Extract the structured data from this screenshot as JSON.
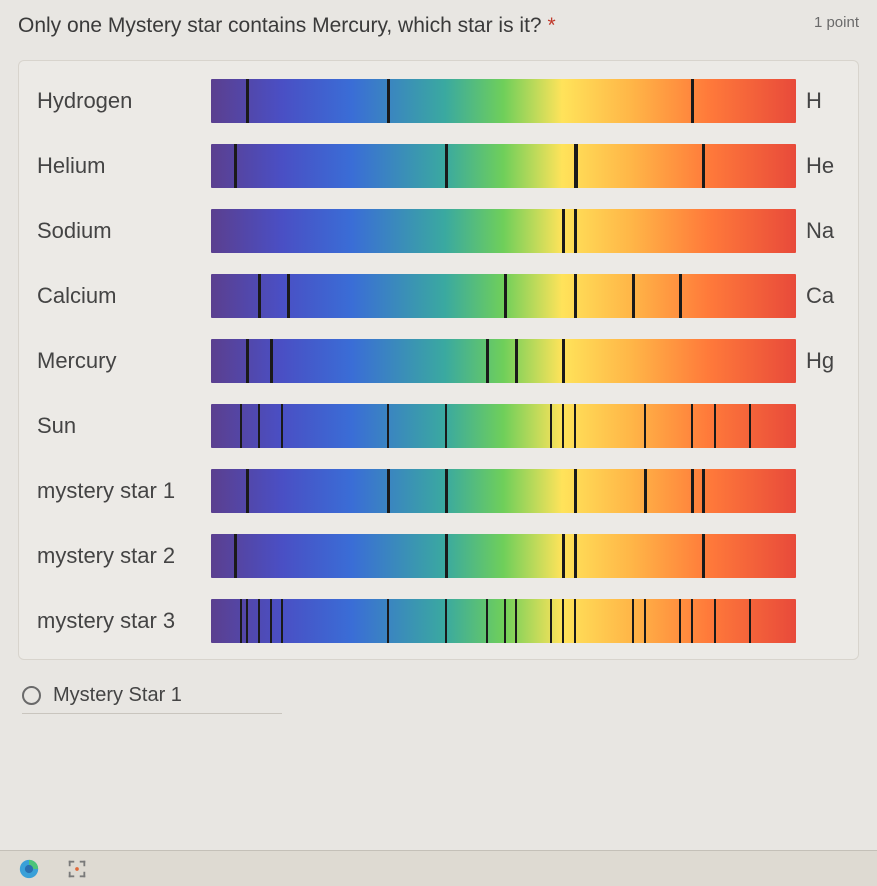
{
  "question": {
    "text": "Only one Mystery star contains Mercury, which star is it?",
    "required_marker": "*",
    "points_label": "1 point"
  },
  "line_style": {
    "color": "#1a1a1a",
    "width_thin": 2,
    "width_thick": 3
  },
  "spectra": [
    {
      "label": "Hydrogen",
      "symbol": "H",
      "lines": [
        {
          "pos": 6,
          "w": 3
        },
        {
          "pos": 30,
          "w": 3
        },
        {
          "pos": 82,
          "w": 3
        }
      ]
    },
    {
      "label": "Helium",
      "symbol": "He",
      "lines": [
        {
          "pos": 4,
          "w": 3
        },
        {
          "pos": 40,
          "w": 3
        },
        {
          "pos": 62,
          "w": 4
        },
        {
          "pos": 84,
          "w": 3
        }
      ]
    },
    {
      "label": "Sodium",
      "symbol": "Na",
      "lines": [
        {
          "pos": 60,
          "w": 3
        },
        {
          "pos": 62,
          "w": 3
        }
      ]
    },
    {
      "label": "Calcium",
      "symbol": "Ca",
      "lines": [
        {
          "pos": 8,
          "w": 3
        },
        {
          "pos": 13,
          "w": 3
        },
        {
          "pos": 50,
          "w": 3
        },
        {
          "pos": 62,
          "w": 3
        },
        {
          "pos": 72,
          "w": 3
        },
        {
          "pos": 80,
          "w": 3
        }
      ]
    },
    {
      "label": "Mercury",
      "symbol": "Hg",
      "lines": [
        {
          "pos": 6,
          "w": 3
        },
        {
          "pos": 10,
          "w": 3
        },
        {
          "pos": 47,
          "w": 3
        },
        {
          "pos": 52,
          "w": 3
        },
        {
          "pos": 60,
          "w": 3
        }
      ]
    },
    {
      "label": "Sun",
      "symbol": "",
      "lines": [
        {
          "pos": 5,
          "w": 2
        },
        {
          "pos": 8,
          "w": 2
        },
        {
          "pos": 12,
          "w": 2
        },
        {
          "pos": 30,
          "w": 2
        },
        {
          "pos": 40,
          "w": 2
        },
        {
          "pos": 58,
          "w": 2
        },
        {
          "pos": 60,
          "w": 2
        },
        {
          "pos": 62,
          "w": 2
        },
        {
          "pos": 74,
          "w": 2
        },
        {
          "pos": 82,
          "w": 2
        },
        {
          "pos": 86,
          "w": 2
        },
        {
          "pos": 92,
          "w": 2
        }
      ]
    },
    {
      "label": "mystery star 1",
      "symbol": "",
      "lines": [
        {
          "pos": 6,
          "w": 3
        },
        {
          "pos": 30,
          "w": 3
        },
        {
          "pos": 40,
          "w": 3
        },
        {
          "pos": 62,
          "w": 3
        },
        {
          "pos": 74,
          "w": 3
        },
        {
          "pos": 82,
          "w": 3
        },
        {
          "pos": 84,
          "w": 3
        }
      ]
    },
    {
      "label": "mystery star 2",
      "symbol": "",
      "lines": [
        {
          "pos": 4,
          "w": 3
        },
        {
          "pos": 40,
          "w": 3
        },
        {
          "pos": 60,
          "w": 3
        },
        {
          "pos": 62,
          "w": 3
        },
        {
          "pos": 84,
          "w": 3
        }
      ]
    },
    {
      "label": "mystery star 3",
      "symbol": "",
      "lines": [
        {
          "pos": 5,
          "w": 2
        },
        {
          "pos": 6,
          "w": 2
        },
        {
          "pos": 8,
          "w": 2
        },
        {
          "pos": 10,
          "w": 2
        },
        {
          "pos": 12,
          "w": 2
        },
        {
          "pos": 30,
          "w": 2
        },
        {
          "pos": 40,
          "w": 2
        },
        {
          "pos": 47,
          "w": 2
        },
        {
          "pos": 50,
          "w": 2
        },
        {
          "pos": 52,
          "w": 2
        },
        {
          "pos": 58,
          "w": 2
        },
        {
          "pos": 60,
          "w": 2
        },
        {
          "pos": 62,
          "w": 2
        },
        {
          "pos": 72,
          "w": 2
        },
        {
          "pos": 74,
          "w": 2
        },
        {
          "pos": 80,
          "w": 2
        },
        {
          "pos": 82,
          "w": 2
        },
        {
          "pos": 86,
          "w": 2
        },
        {
          "pos": 92,
          "w": 2
        }
      ]
    }
  ],
  "answers": [
    {
      "label": "Mystery Star 1"
    }
  ]
}
